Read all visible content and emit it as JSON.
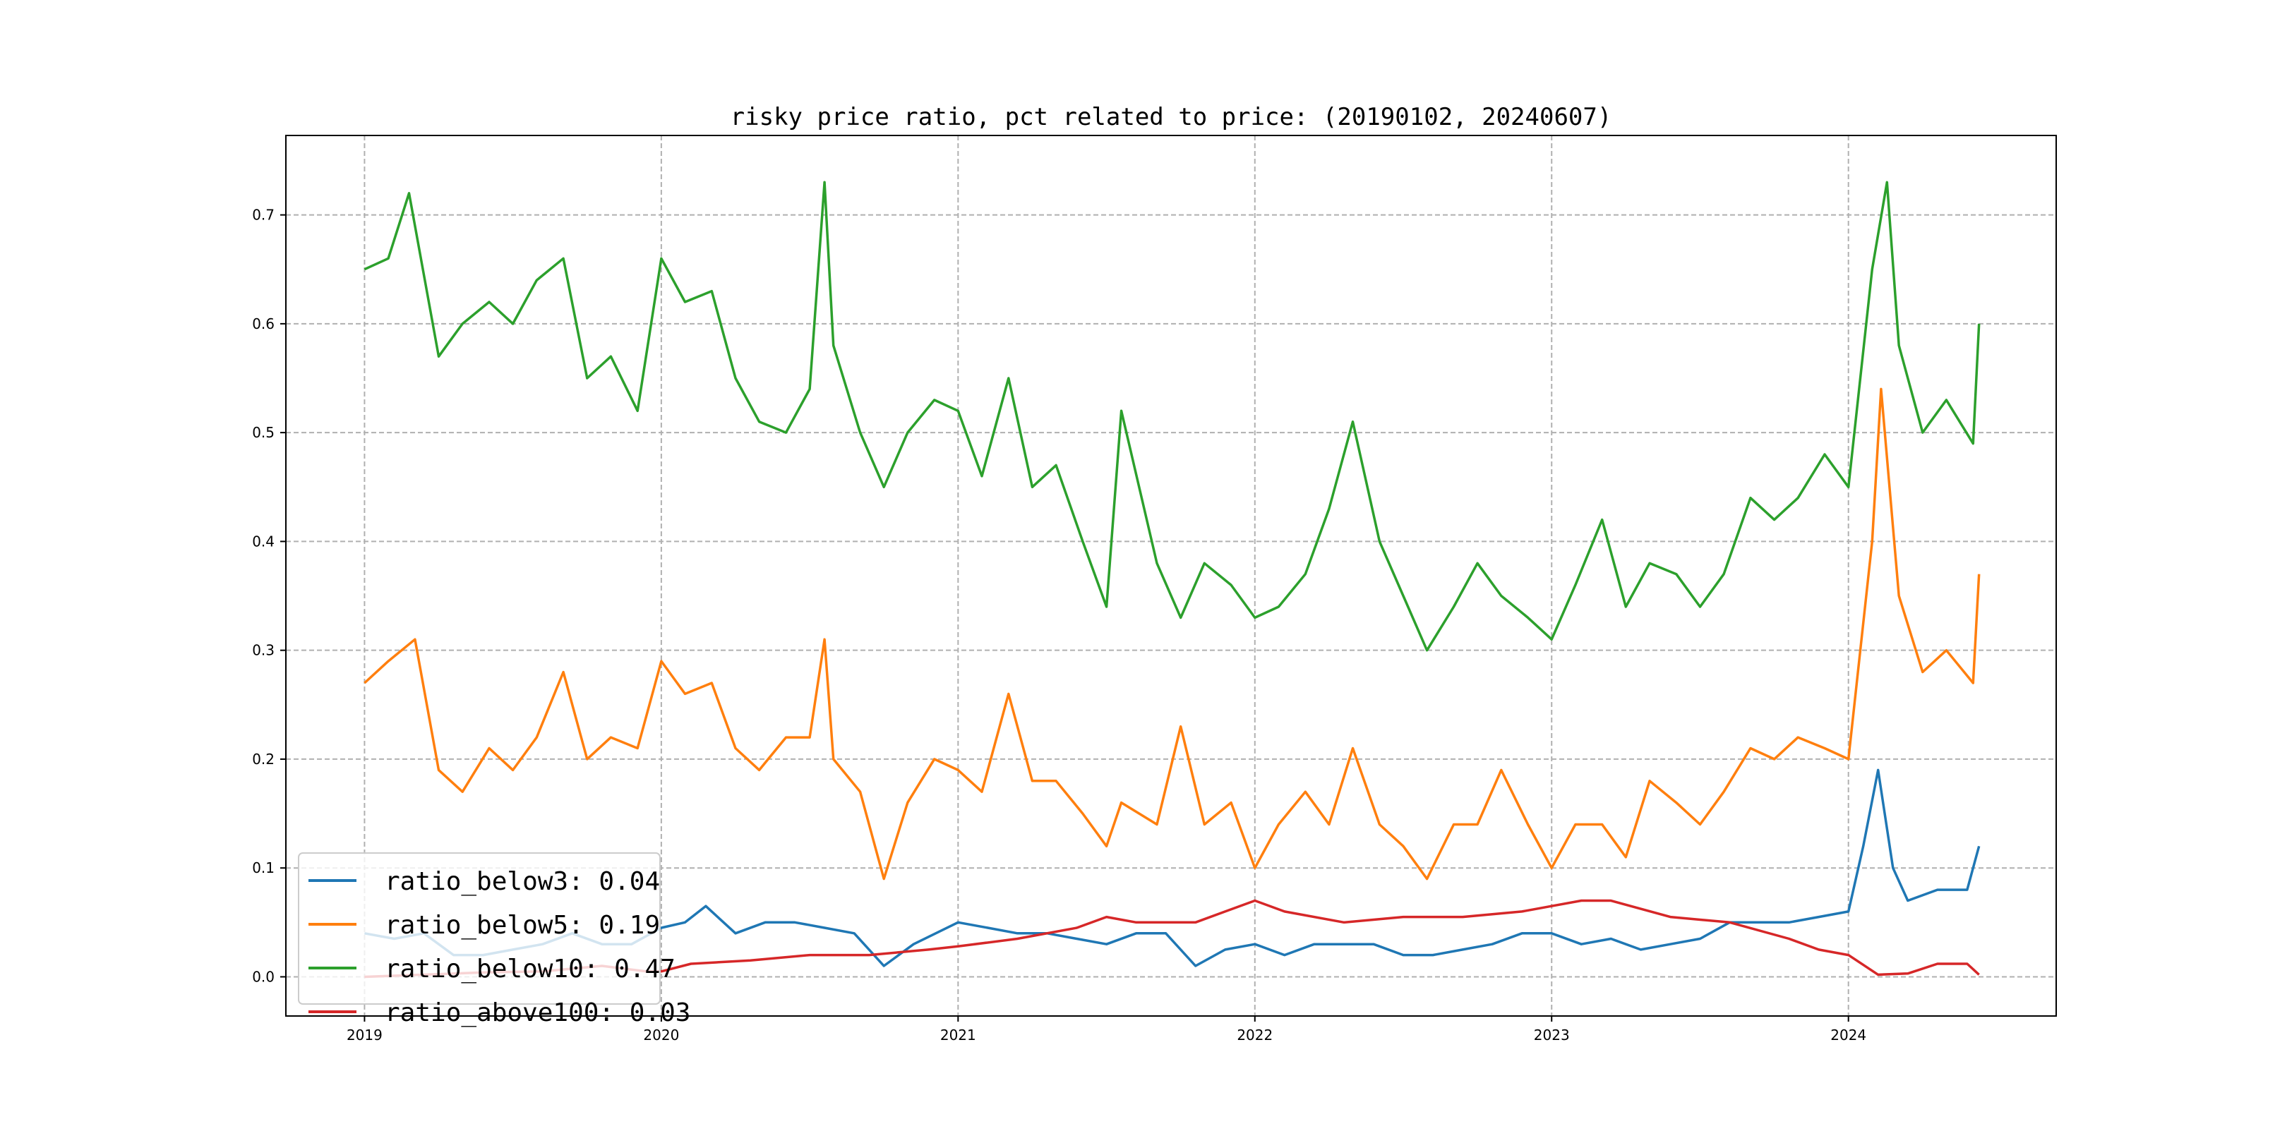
{
  "chart_data": {
    "type": "line",
    "title": "risky price ratio, pct related to price: (20190102, 20240607)",
    "xlabel": "",
    "ylabel": "",
    "xlim": [
      2018.735,
      2024.7
    ],
    "ylim": [
      -0.036,
      0.773
    ],
    "grid": true,
    "legend_placement": "lower-left",
    "x_ticks": [
      2019,
      2020,
      2021,
      2022,
      2023,
      2024
    ],
    "x_tick_labels": [
      "2019",
      "2020",
      "2021",
      "2022",
      "2023",
      "2024"
    ],
    "y_ticks": [
      0.0,
      0.1,
      0.2,
      0.3,
      0.4,
      0.5,
      0.6,
      0.7
    ],
    "y_tick_labels": [
      "0.0",
      "0.1",
      "0.2",
      "0.3",
      "0.4",
      "0.5",
      "0.6",
      "0.7"
    ],
    "series": [
      {
        "name": "ratio_below3",
        "legend": "ratio_below3: 0.04",
        "color": "#1f77b4",
        "x": [
          2019,
          2019.1,
          2019.2,
          2019.3,
          2019.4,
          2019.5,
          2019.6,
          2019.7,
          2019.8,
          2019.9,
          2020,
          2020.08,
          2020.15,
          2020.25,
          2020.35,
          2020.45,
          2020.55,
          2020.65,
          2020.75,
          2020.85,
          2021,
          2021.1,
          2021.2,
          2021.3,
          2021.4,
          2021.5,
          2021.6,
          2021.7,
          2021.8,
          2021.9,
          2022,
          2022.1,
          2022.2,
          2022.3,
          2022.4,
          2022.5,
          2022.6,
          2022.7,
          2022.8,
          2022.9,
          2023,
          2023.1,
          2023.2,
          2023.3,
          2023.4,
          2023.5,
          2023.6,
          2023.7,
          2023.8,
          2023.9,
          2024,
          2024.05,
          2024.1,
          2024.15,
          2024.2,
          2024.3,
          2024.4,
          2024.44
        ],
        "y": [
          0.04,
          0.035,
          0.04,
          0.02,
          0.02,
          0.025,
          0.03,
          0.04,
          0.03,
          0.03,
          0.045,
          0.05,
          0.065,
          0.04,
          0.05,
          0.05,
          0.045,
          0.04,
          0.01,
          0.03,
          0.05,
          0.045,
          0.04,
          0.04,
          0.035,
          0.03,
          0.04,
          0.04,
          0.01,
          0.025,
          0.03,
          0.02,
          0.03,
          0.03,
          0.03,
          0.02,
          0.02,
          0.025,
          0.03,
          0.04,
          0.04,
          0.03,
          0.035,
          0.025,
          0.03,
          0.035,
          0.05,
          0.05,
          0.05,
          0.055,
          0.06,
          0.12,
          0.19,
          0.1,
          0.07,
          0.08,
          0.08,
          0.12
        ]
      },
      {
        "name": "ratio_below5",
        "legend": "ratio_below5: 0.19",
        "color": "#ff7f0e",
        "x": [
          2019,
          2019.08,
          2019.17,
          2019.25,
          2019.33,
          2019.42,
          2019.5,
          2019.58,
          2019.67,
          2019.75,
          2019.83,
          2019.92,
          2020,
          2020.08,
          2020.17,
          2020.25,
          2020.33,
          2020.42,
          2020.5,
          2020.55,
          2020.58,
          2020.67,
          2020.75,
          2020.83,
          2020.92,
          2021,
          2021.08,
          2021.17,
          2021.25,
          2021.33,
          2021.42,
          2021.5,
          2021.55,
          2021.67,
          2021.75,
          2021.83,
          2021.92,
          2022,
          2022.08,
          2022.17,
          2022.25,
          2022.33,
          2022.42,
          2022.5,
          2022.58,
          2022.67,
          2022.75,
          2022.83,
          2022.92,
          2023,
          2023.08,
          2023.17,
          2023.25,
          2023.33,
          2023.42,
          2023.5,
          2023.58,
          2023.67,
          2023.75,
          2023.83,
          2023.92,
          2024,
          2024.08,
          2024.11,
          2024.17,
          2024.25,
          2024.33,
          2024.42,
          2024.44
        ],
        "y": [
          0.27,
          0.29,
          0.31,
          0.19,
          0.17,
          0.21,
          0.19,
          0.22,
          0.28,
          0.2,
          0.22,
          0.21,
          0.29,
          0.26,
          0.27,
          0.21,
          0.19,
          0.22,
          0.22,
          0.31,
          0.2,
          0.17,
          0.09,
          0.16,
          0.2,
          0.19,
          0.17,
          0.26,
          0.18,
          0.18,
          0.15,
          0.12,
          0.16,
          0.14,
          0.23,
          0.14,
          0.16,
          0.1,
          0.14,
          0.17,
          0.14,
          0.21,
          0.14,
          0.12,
          0.09,
          0.14,
          0.14,
          0.19,
          0.14,
          0.1,
          0.14,
          0.14,
          0.11,
          0.18,
          0.16,
          0.14,
          0.17,
          0.21,
          0.2,
          0.22,
          0.21,
          0.2,
          0.4,
          0.54,
          0.35,
          0.28,
          0.3,
          0.27,
          0.37
        ]
      },
      {
        "name": "ratio_below10",
        "legend": "ratio_below10: 0.47",
        "color": "#2ca02c",
        "x": [
          2019,
          2019.08,
          2019.15,
          2019.25,
          2019.33,
          2019.42,
          2019.5,
          2019.58,
          2019.67,
          2019.75,
          2019.83,
          2019.92,
          2020,
          2020.08,
          2020.17,
          2020.25,
          2020.33,
          2020.42,
          2020.5,
          2020.55,
          2020.58,
          2020.67,
          2020.75,
          2020.83,
          2020.92,
          2021,
          2021.08,
          2021.17,
          2021.25,
          2021.33,
          2021.42,
          2021.5,
          2021.55,
          2021.67,
          2021.75,
          2021.83,
          2021.92,
          2022,
          2022.08,
          2022.17,
          2022.25,
          2022.33,
          2022.42,
          2022.5,
          2022.58,
          2022.67,
          2022.75,
          2022.83,
          2022.92,
          2023,
          2023.08,
          2023.17,
          2023.25,
          2023.33,
          2023.42,
          2023.5,
          2023.58,
          2023.67,
          2023.75,
          2023.83,
          2023.92,
          2024,
          2024.08,
          2024.13,
          2024.17,
          2024.25,
          2024.33,
          2024.42,
          2024.44
        ],
        "y": [
          0.65,
          0.66,
          0.72,
          0.57,
          0.6,
          0.62,
          0.6,
          0.64,
          0.66,
          0.55,
          0.57,
          0.52,
          0.66,
          0.62,
          0.63,
          0.55,
          0.51,
          0.5,
          0.54,
          0.73,
          0.58,
          0.5,
          0.45,
          0.5,
          0.53,
          0.52,
          0.46,
          0.55,
          0.45,
          0.47,
          0.4,
          0.34,
          0.52,
          0.38,
          0.33,
          0.38,
          0.36,
          0.33,
          0.34,
          0.37,
          0.43,
          0.51,
          0.4,
          0.35,
          0.3,
          0.34,
          0.38,
          0.35,
          0.33,
          0.31,
          0.36,
          0.42,
          0.34,
          0.38,
          0.37,
          0.34,
          0.37,
          0.44,
          0.42,
          0.44,
          0.48,
          0.45,
          0.65,
          0.73,
          0.58,
          0.5,
          0.53,
          0.49,
          0.6
        ]
      },
      {
        "name": "ratio_above100",
        "legend": "ratio_above100: 0.03",
        "color": "#d62728",
        "x": [
          2019,
          2019.2,
          2019.4,
          2019.6,
          2019.8,
          2019.95,
          2020,
          2020.1,
          2020.3,
          2020.5,
          2020.7,
          2020.9,
          2021,
          2021.2,
          2021.4,
          2021.5,
          2021.6,
          2021.8,
          2021.9,
          2022,
          2022.1,
          2022.3,
          2022.5,
          2022.7,
          2022.9,
          2023,
          2023.1,
          2023.2,
          2023.4,
          2023.6,
          2023.8,
          2023.9,
          2024,
          2024.1,
          2024.2,
          2024.3,
          2024.4,
          2024.44
        ],
        "y": [
          0.0,
          0.002,
          0.004,
          0.005,
          0.01,
          0.005,
          0.005,
          0.012,
          0.015,
          0.02,
          0.02,
          0.025,
          0.028,
          0.035,
          0.045,
          0.055,
          0.05,
          0.05,
          0.06,
          0.07,
          0.06,
          0.05,
          0.055,
          0.055,
          0.06,
          0.065,
          0.07,
          0.07,
          0.055,
          0.05,
          0.035,
          0.025,
          0.02,
          0.002,
          0.003,
          0.012,
          0.012,
          0.002
        ]
      }
    ]
  }
}
